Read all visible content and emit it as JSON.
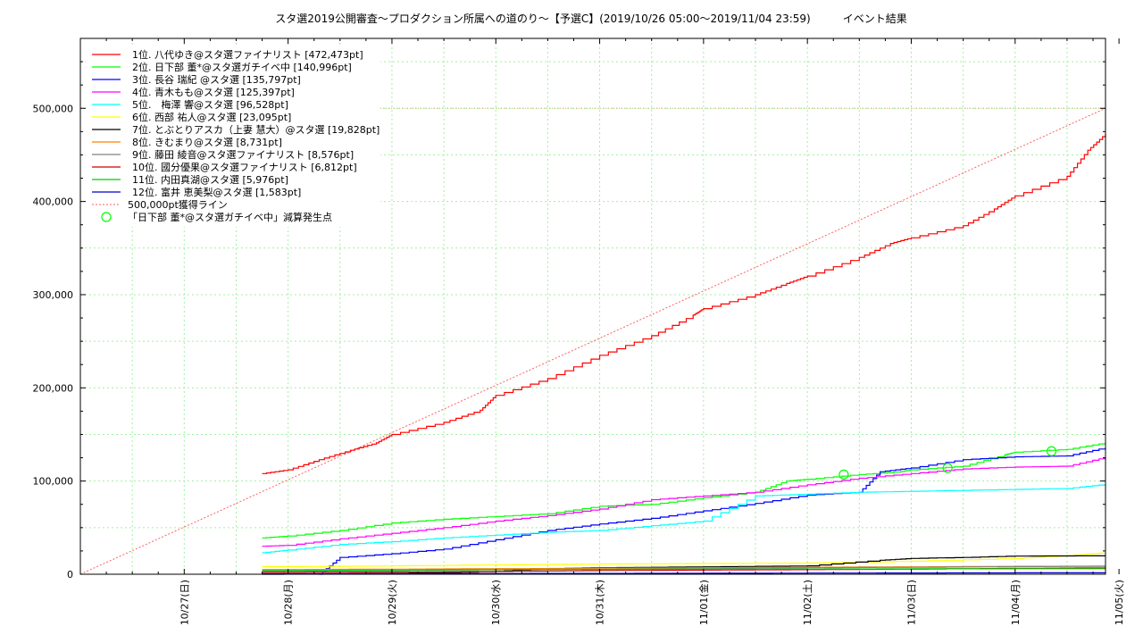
{
  "chart_data": {
    "type": "line",
    "title": "スタ選2019公開審査〜プロダクション所属への道のり〜【予選C】(2019/10/26 05:00〜2019/11/04 23:59)　　　イベント結果",
    "xlabel": "",
    "ylabel": "",
    "xlim": [
      0.0,
      9.87
    ],
    "ylim": [
      0,
      575000
    ],
    "grid": true,
    "legend_position": "top-left",
    "x_tick_values": [
      1,
      2,
      3,
      4,
      5,
      6,
      7,
      8,
      9,
      10
    ],
    "x_tick_labels": [
      "10/27(日)",
      "10/28(月)",
      "10/29(火)",
      "10/30(水)",
      "10/31(木)",
      "11/01(金)",
      "11/02(土)",
      "11/03(日)",
      "11/04(月)",
      "11/05(火)"
    ],
    "y_tick_values": [
      0,
      100000,
      200000,
      300000,
      400000,
      500000
    ],
    "y_tick_labels": [
      "0",
      "100,000",
      "200,000",
      "300,000",
      "400,000",
      "500,000"
    ],
    "series": [
      {
        "name": "1位. 八代ゆき@スタ選ファイナリスト [472,473pt]",
        "color": "#ff0000",
        "x": [
          1.75,
          2.0,
          2.3,
          2.6,
          2.85,
          3.0,
          3.5,
          3.85,
          4.0,
          4.5,
          5.0,
          5.5,
          5.9,
          6.0,
          6.5,
          6.8,
          7.0,
          7.5,
          7.8,
          8.0,
          8.5,
          8.8,
          9.0,
          9.5,
          9.7,
          9.87
        ],
        "y": [
          108000,
          112000,
          123000,
          133000,
          141000,
          150000,
          163000,
          176000,
          192000,
          210000,
          235000,
          256000,
          278000,
          285000,
          300000,
          312000,
          320000,
          340000,
          355000,
          361000,
          374000,
          392000,
          406000,
          427000,
          455000,
          472473
        ]
      },
      {
        "name": "2位. 日下部 董*@スタ選ガチイベ中 [140,996pt]",
        "color": "#00ff00",
        "x": [
          1.75,
          2.0,
          2.5,
          3.0,
          3.5,
          4.0,
          4.5,
          5.0,
          5.5,
          6.0,
          6.5,
          6.8,
          7.0,
          7.5,
          7.9,
          8.0,
          8.5,
          8.9,
          9.0,
          9.5,
          9.87
        ],
        "y": [
          39000,
          41000,
          47000,
          55000,
          59000,
          62000,
          65000,
          73000,
          75000,
          82000,
          88000,
          100000,
          102000,
          107000,
          110000,
          112000,
          116000,
          128000,
          131000,
          134000,
          140996
        ]
      },
      {
        "name": "3位. 長谷 瑞紀 @スタ選 [135,797pt]",
        "color": "#0000ff",
        "x": [
          2.3,
          2.5,
          3.0,
          3.5,
          4.0,
          4.5,
          5.0,
          5.5,
          6.0,
          6.5,
          7.0,
          7.5,
          7.7,
          8.0,
          8.5,
          9.0,
          9.5,
          9.87
        ],
        "y": [
          0,
          18000,
          22000,
          27000,
          37000,
          47000,
          54000,
          60000,
          68000,
          76000,
          85000,
          88000,
          110000,
          114000,
          123000,
          126000,
          127000,
          135797
        ]
      },
      {
        "name": "4位. 青木もも@スタ選 [125,397pt]",
        "color": "#ff00ff",
        "x": [
          1.75,
          2.0,
          2.5,
          3.0,
          3.5,
          4.0,
          4.5,
          5.0,
          5.5,
          6.0,
          6.5,
          7.0,
          7.5,
          8.0,
          8.5,
          9.0,
          9.5,
          9.87
        ],
        "y": [
          30000,
          31000,
          38000,
          44000,
          50000,
          57000,
          63000,
          70000,
          80000,
          84000,
          88000,
          96000,
          103000,
          108000,
          113000,
          115000,
          116000,
          125397
        ]
      },
      {
        "name": "5位.　梅澤 響@スタ選 [96,528pt]",
        "color": "#00ffff",
        "x": [
          1.75,
          2.0,
          2.5,
          3.0,
          3.5,
          4.0,
          4.5,
          5.0,
          5.5,
          6.0,
          6.5,
          7.0,
          7.5,
          8.0,
          8.5,
          9.0,
          9.5,
          9.87
        ],
        "y": [
          23000,
          26000,
          32000,
          35000,
          39000,
          42000,
          45000,
          47000,
          52000,
          57000,
          84000,
          86000,
          88000,
          89000,
          90000,
          91000,
          92000,
          96528
        ]
      },
      {
        "name": "6位. 西部 祐人@スタ選 [23,095pt]",
        "color": "#ffff00",
        "x": [
          1.75,
          3.0,
          4.0,
          5.0,
          6.0,
          7.0,
          8.0,
          9.0,
          9.5,
          9.87
        ],
        "y": [
          8000,
          9000,
          10000,
          11000,
          11500,
          12000,
          14000,
          17000,
          20000,
          23095
        ]
      },
      {
        "name": "7位. とぶとりアスカ（上妻 慧大）@スタ選 [19,828pt]",
        "color": "#000000",
        "x": [
          1.75,
          3.0,
          4.0,
          4.5,
          5.0,
          6.0,
          7.0,
          7.7,
          8.0,
          8.5,
          9.0,
          9.87
        ],
        "y": [
          0,
          1000,
          3000,
          6000,
          7000,
          8000,
          9000,
          15000,
          17000,
          18000,
          19500,
          19828
        ]
      },
      {
        "name": "8位. きむまり@スタ選 [8,731pt]",
        "color": "#ff8000",
        "x": [
          1.75,
          3.0,
          4.0,
          5.0,
          6.0,
          7.0,
          8.0,
          9.0,
          9.87
        ],
        "y": [
          5000,
          5500,
          6000,
          6500,
          7000,
          7500,
          8000,
          8500,
          8731
        ]
      },
      {
        "name": "9位. 藤田 綾音@スタ選ファイナリスト [8,576pt]",
        "color": "#808080",
        "x": [
          1.75,
          3.0,
          4.0,
          5.0,
          6.0,
          7.0,
          8.0,
          9.0,
          9.87
        ],
        "y": [
          3000,
          4000,
          5000,
          5500,
          6000,
          7000,
          7500,
          8200,
          8576
        ]
      },
      {
        "name": "10位. 國分優果@スタ選ファイナリスト [6,812pt]",
        "color": "#cc0000",
        "x": [
          1.75,
          3.0,
          4.0,
          5.0,
          6.0,
          7.0,
          8.0,
          9.0,
          9.87
        ],
        "y": [
          2000,
          2500,
          3000,
          4000,
          4500,
          5000,
          5500,
          6400,
          6812
        ]
      },
      {
        "name": "11位. 内田真湖@スタ選 [5,976pt]",
        "color": "#00cc00",
        "x": [
          1.75,
          3.0,
          4.0,
          5.0,
          6.0,
          7.0,
          8.0,
          9.0,
          9.87
        ],
        "y": [
          4000,
          4500,
          5000,
          5200,
          5400,
          5600,
          5800,
          5900,
          5976
        ]
      },
      {
        "name": "12位. 富井 恵美梨@スタ選 [1,583pt]",
        "color": "#0000cc",
        "x": [
          1.75,
          3.0,
          5.0,
          7.0,
          9.0,
          9.87
        ],
        "y": [
          500,
          700,
          900,
          1200,
          1500,
          1583
        ]
      }
    ],
    "reference_line": {
      "name": "500,000pt獲得ライン",
      "color": "#ff6060",
      "x": [
        0.0,
        9.87
      ],
      "y": [
        0,
        500000
      ],
      "horizontal_y": 500000
    },
    "markers": {
      "name": "「日下部 董*@スタ選ガチイベ中」減算発生点",
      "color": "#00ff00",
      "x": [
        7.35,
        8.35,
        9.35
      ],
      "y": [
        107000,
        114000,
        132000
      ]
    }
  }
}
